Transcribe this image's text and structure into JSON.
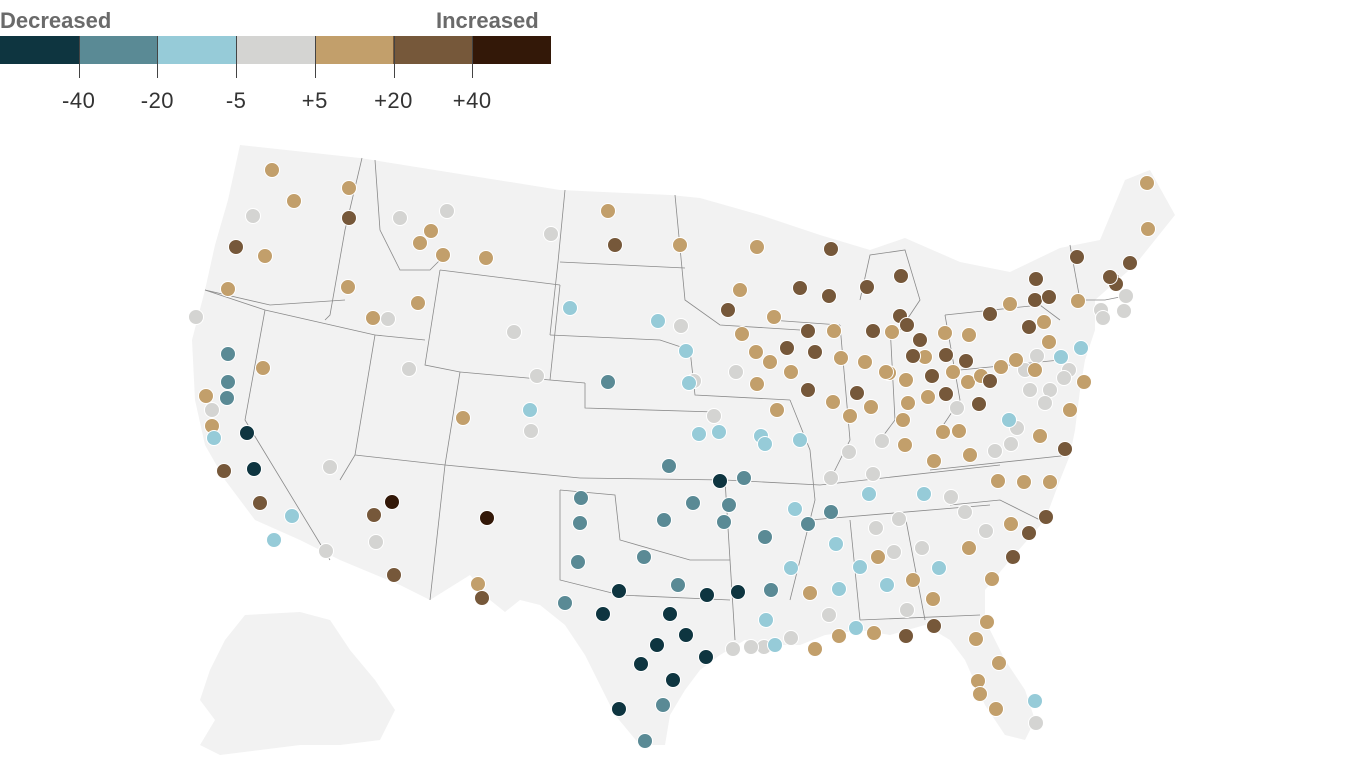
{
  "legend": {
    "decreased_label": "Decreased",
    "increased_label": "Increased",
    "bins": [
      {
        "color": "#0e3540"
      },
      {
        "color": "#5a8a95"
      },
      {
        "color": "#96cbd8"
      },
      {
        "color": "#d4d4d2"
      },
      {
        "color": "#c29f6b"
      },
      {
        "color": "#76583a"
      },
      {
        "color": "#331808"
      }
    ],
    "ticks": [
      "-40",
      "-20",
      "-5",
      "+5",
      "+20",
      "+40"
    ]
  },
  "map": {
    "land_color": "#f2f2f2",
    "border_color": "#8a8a8a"
  }
}
